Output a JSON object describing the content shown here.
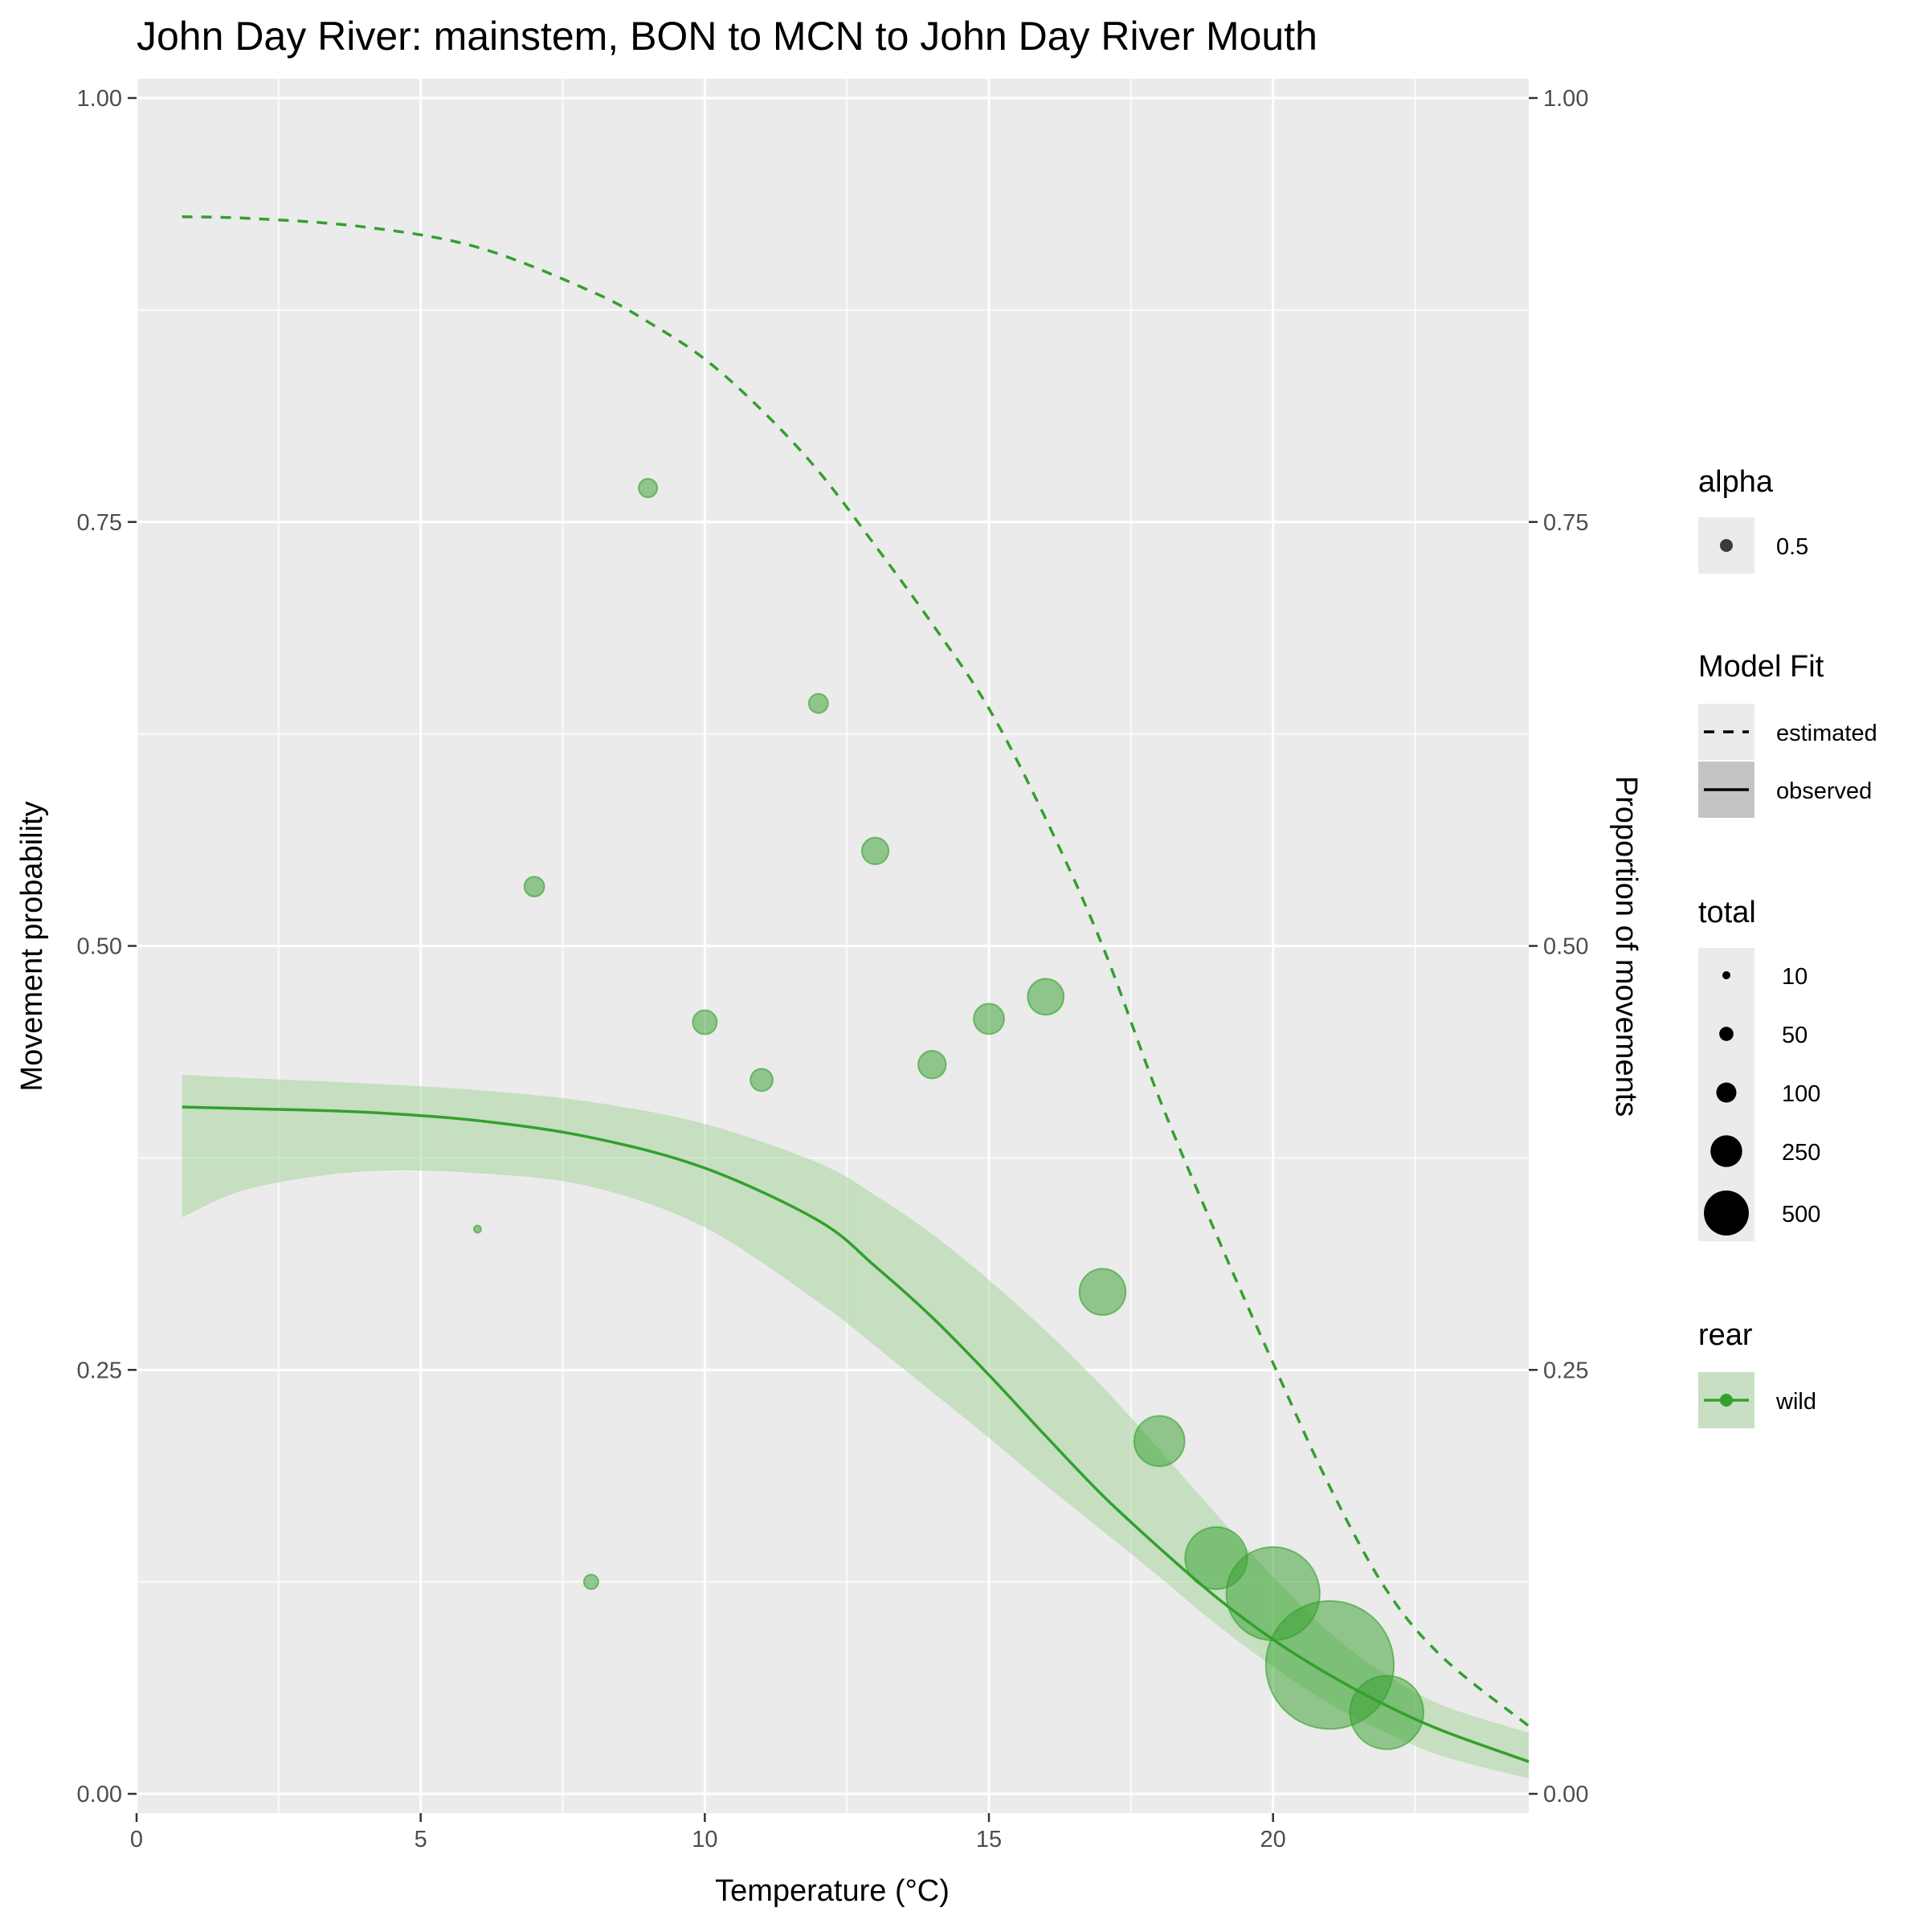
{
  "chart_data": {
    "type": "scatter",
    "title": "John Day River: mainstem, BON to MCN to John Day River Mouth",
    "xlabel": "Temperature (°C)",
    "ylabel": "Movement probability",
    "y2label": "Proportion of movements",
    "xlim": [
      0,
      24.5
    ],
    "ylim": [
      0,
      1
    ],
    "x_ticks": [
      "0",
      "5",
      "10",
      "15",
      "20"
    ],
    "x_tick_values": [
      0,
      5,
      10,
      15,
      20
    ],
    "y_ticks": [
      "0.00",
      "0.25",
      "0.50",
      "0.75",
      "1.00"
    ],
    "y_tick_values": [
      0,
      0.25,
      0.5,
      0.75,
      1.0
    ],
    "grid": true,
    "background": "#ebebeb",
    "series_color": "#33a02c",
    "ribbon_color": "#a6d59d",
    "points": [
      {
        "x": 6,
        "y": 0.333,
        "total": 2
      },
      {
        "x": 7,
        "y": 0.535,
        "total": 15
      },
      {
        "x": 8,
        "y": 0.125,
        "total": 8
      },
      {
        "x": 9,
        "y": 0.77,
        "total": 13
      },
      {
        "x": 10,
        "y": 0.455,
        "total": 22
      },
      {
        "x": 11,
        "y": 0.421,
        "total": 19
      },
      {
        "x": 12,
        "y": 0.643,
        "total": 14
      },
      {
        "x": 13,
        "y": 0.556,
        "total": 27
      },
      {
        "x": 14,
        "y": 0.43,
        "total": 29
      },
      {
        "x": 15,
        "y": 0.457,
        "total": 35
      },
      {
        "x": 16,
        "y": 0.47,
        "total": 49
      },
      {
        "x": 17,
        "y": 0.296,
        "total": 81
      },
      {
        "x": 18,
        "y": 0.208,
        "total": 96
      },
      {
        "x": 19,
        "y": 0.139,
        "total": 146
      },
      {
        "x": 20,
        "y": 0.118,
        "total": 330
      },
      {
        "x": 21,
        "y": 0.076,
        "total": 620
      },
      {
        "x": 22,
        "y": 0.048,
        "total": 205
      }
    ],
    "observed_fit": {
      "x": [
        0.8,
        2,
        4,
        6,
        8,
        10,
        12,
        13,
        14,
        15,
        16,
        17,
        18,
        19,
        20,
        21,
        22,
        23,
        24.5
      ],
      "y": [
        0.405,
        0.404,
        0.402,
        0.397,
        0.387,
        0.369,
        0.338,
        0.311,
        0.281,
        0.247,
        0.211,
        0.176,
        0.145,
        0.116,
        0.091,
        0.07,
        0.052,
        0.037,
        0.019
      ],
      "lower": [
        0.34,
        0.357,
        0.367,
        0.366,
        0.358,
        0.334,
        0.29,
        0.264,
        0.237,
        0.21,
        0.182,
        0.155,
        0.128,
        0.1,
        0.075,
        0.053,
        0.036,
        0.022,
        0.009
      ],
      "upper": [
        0.424,
        0.422,
        0.419,
        0.415,
        0.408,
        0.395,
        0.372,
        0.353,
        0.33,
        0.303,
        0.273,
        0.24,
        0.203,
        0.165,
        0.128,
        0.095,
        0.07,
        0.052,
        0.036
      ]
    },
    "estimated_fit": {
      "x": [
        0.8,
        2,
        4,
        6,
        8,
        9,
        10,
        11,
        12,
        13,
        14,
        15,
        16,
        17,
        18,
        19,
        20,
        21,
        22,
        23,
        24.5
      ],
      "y": [
        0.93,
        0.929,
        0.924,
        0.912,
        0.886,
        0.868,
        0.846,
        0.816,
        0.78,
        0.736,
        0.69,
        0.64,
        0.575,
        0.5,
        0.41,
        0.33,
        0.254,
        0.181,
        0.12,
        0.08,
        0.04
      ]
    },
    "legend": {
      "placement": "right",
      "alpha": {
        "title": "alpha",
        "items": [
          "0.5"
        ]
      },
      "model_fit": {
        "title": "Model Fit",
        "items": [
          "estimated",
          "observed"
        ]
      },
      "total": {
        "title": "total",
        "items": [
          "10",
          "50",
          "100",
          "250",
          "500"
        ],
        "values": [
          10,
          50,
          100,
          250,
          500
        ]
      },
      "rear": {
        "title": "rear",
        "items": [
          "wild"
        ]
      }
    }
  }
}
